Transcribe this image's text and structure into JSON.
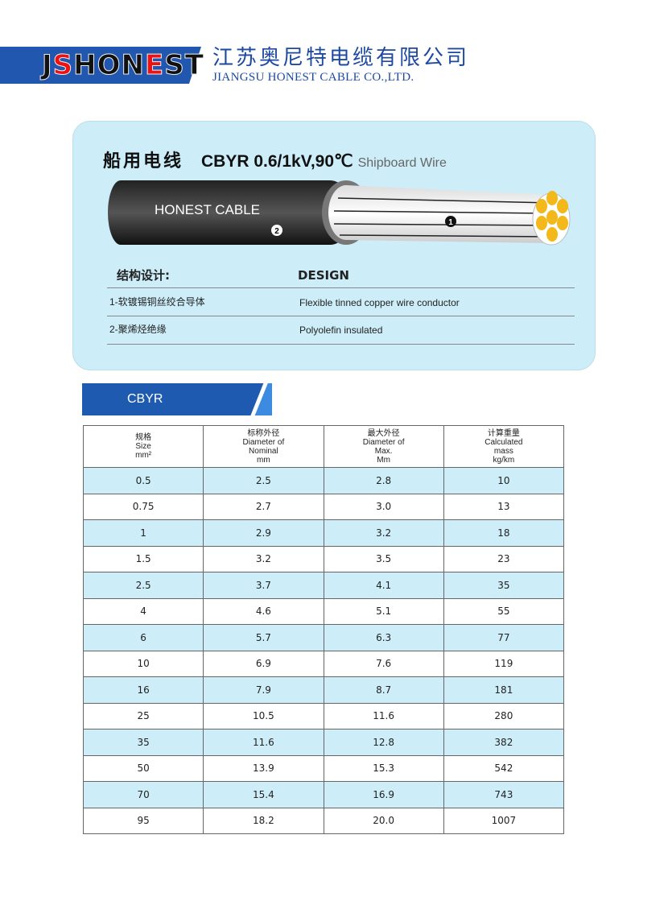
{
  "header": {
    "logo": "JSHONEST",
    "company_cn": "江苏奥尼特电缆有限公司",
    "company_en": "JIANGSU HONEST CABLE CO.,LTD.",
    "brand_color": "#2257b0"
  },
  "product": {
    "title_cn": "船用电线",
    "model": "CBYR 0.6/1kV,90℃",
    "title_en": "Shipboard Wire",
    "cable_print": "HONEST CABLE",
    "marker_1": "1",
    "marker_2": "2"
  },
  "design": {
    "heading_cn": "结构设计:",
    "heading_en": "DESIGN",
    "rows": [
      {
        "cn": "1-软镀锡铜丝绞合导体",
        "en": "Flexible tinned copper wire conductor"
      },
      {
        "cn": "2-聚烯烃绝缘",
        "en": "Polyolefin insulated"
      }
    ]
  },
  "table": {
    "tab_label": "CBYR",
    "headers": [
      [
        "规格",
        "Size",
        "mm²"
      ],
      [
        "标称外径",
        "Diameter of",
        "Nominal",
        "mm"
      ],
      [
        "最大外径",
        "Diameter of",
        "Max.",
        "Mm"
      ],
      [
        "计算重量",
        "Calculated",
        "mass",
        "kg/km"
      ]
    ],
    "rows": [
      [
        "0.5",
        "2.5",
        "2.8",
        "10"
      ],
      [
        "0.75",
        "2.7",
        "3.0",
        "13"
      ],
      [
        "1",
        "2.9",
        "3.2",
        "18"
      ],
      [
        "1.5",
        "3.2",
        "3.5",
        "23"
      ],
      [
        "2.5",
        "3.7",
        "4.1",
        "35"
      ],
      [
        "4",
        "4.6",
        "5.1",
        "55"
      ],
      [
        "6",
        "5.7",
        "6.3",
        "77"
      ],
      [
        "10",
        "6.9",
        "7.6",
        "119"
      ],
      [
        "16",
        "7.9",
        "8.7",
        "181"
      ],
      [
        "25",
        "10.5",
        "11.6",
        "280"
      ],
      [
        "35",
        "11.6",
        "12.8",
        "382"
      ],
      [
        "50",
        "13.9",
        "15.3",
        "542"
      ],
      [
        "70",
        "15.4",
        "16.9",
        "743"
      ],
      [
        "95",
        "18.2",
        "20.0",
        "1007"
      ]
    ]
  }
}
